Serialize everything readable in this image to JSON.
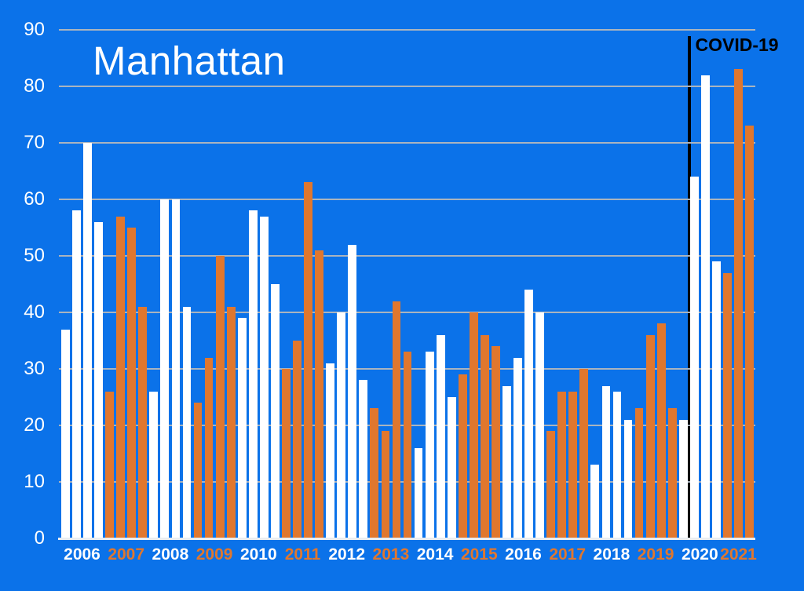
{
  "title": "Manhattan",
  "colors": {
    "background": "#0b72e9",
    "bar_white": "#ffffff",
    "bar_orange": "#e0772e",
    "gridline": "#aab4bf",
    "axis_line": "#e9edf2",
    "annotation_line": "#000000",
    "annotation_text": "#000000",
    "label_white": "#ffffff",
    "label_orange": "#e0772e"
  },
  "chart_data": {
    "type": "bar",
    "title": "Manhattan",
    "xlabel": "",
    "ylabel": "",
    "ylim": [
      0,
      90
    ],
    "yticks": [
      0,
      10,
      20,
      30,
      40,
      50,
      60,
      70,
      80,
      90
    ],
    "grid": true,
    "legend": "none",
    "bars_per_group": 4,
    "groups": [
      {
        "year": "2006",
        "color": "white",
        "values": [
          37,
          58,
          70,
          56
        ]
      },
      {
        "year": "2007",
        "color": "orange",
        "values": [
          26,
          57,
          55,
          41
        ]
      },
      {
        "year": "2008",
        "color": "white",
        "values": [
          26,
          60,
          60,
          41
        ]
      },
      {
        "year": "2009",
        "color": "orange",
        "values": [
          24,
          32,
          50,
          41
        ]
      },
      {
        "year": "2010",
        "color": "white",
        "values": [
          39,
          58,
          57,
          45
        ]
      },
      {
        "year": "2011",
        "color": "orange",
        "values": [
          30,
          35,
          63,
          51
        ]
      },
      {
        "year": "2012",
        "color": "white",
        "values": [
          31,
          40,
          52,
          28
        ]
      },
      {
        "year": "2013",
        "color": "orange",
        "values": [
          23,
          19,
          42,
          33
        ]
      },
      {
        "year": "2014",
        "color": "white",
        "values": [
          16,
          33,
          36,
          25
        ]
      },
      {
        "year": "2015",
        "color": "orange",
        "values": [
          29,
          40,
          36,
          34
        ]
      },
      {
        "year": "2016",
        "color": "white",
        "values": [
          27,
          32,
          44,
          40
        ]
      },
      {
        "year": "2017",
        "color": "orange",
        "values": [
          19,
          26,
          26,
          30
        ]
      },
      {
        "year": "2018",
        "color": "white",
        "values": [
          13,
          27,
          26,
          21
        ]
      },
      {
        "year": "2019",
        "color": "orange",
        "values": [
          23,
          36,
          38,
          23
        ]
      },
      {
        "year": "2020",
        "color": "white",
        "values": [
          21,
          64,
          82,
          49
        ]
      },
      {
        "year": "2021",
        "color": "orange",
        "values": [
          47,
          83,
          73
        ]
      }
    ],
    "annotation": {
      "text": "COVID-19",
      "after_year": "2020",
      "after_bar_index": 0
    }
  }
}
